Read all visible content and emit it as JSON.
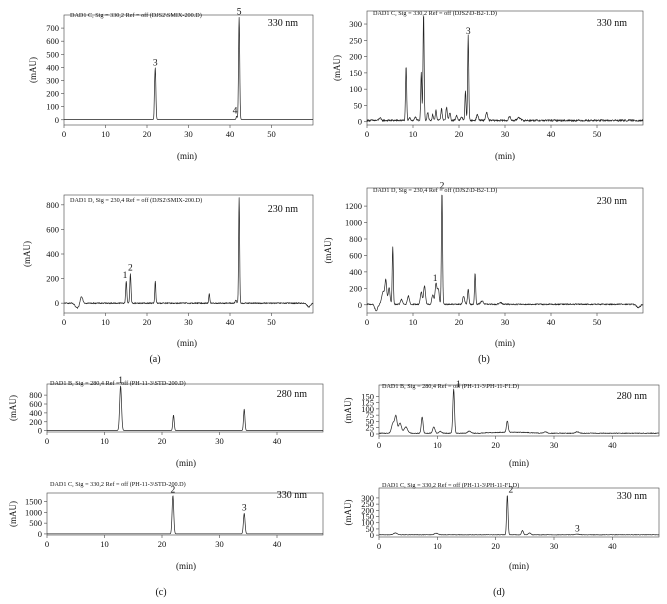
{
  "chart_data": [
    {
      "id": "a1",
      "type": "line",
      "header": "DAD1 C, Sig = 330,2 Ref = off (DJS2\\SMIX-200.D)",
      "wavelength": "330 nm",
      "xlabel": "(min)",
      "ylabel": "(mAU)",
      "xlim": [
        0,
        60
      ],
      "ylim": [
        -40,
        800
      ],
      "xticks": [
        0,
        10,
        20,
        30,
        40,
        50
      ],
      "yticks": [
        0,
        100,
        200,
        300,
        400,
        500,
        600,
        700
      ],
      "baseline": {
        "level": 2,
        "noise": 0,
        "hump": []
      },
      "peaks": [
        [
          22.0,
          390,
          0.14
        ],
        [
          21.8,
          100,
          0.08
        ],
        [
          41.6,
          25,
          0.12
        ],
        [
          42.2,
          780,
          0.14
        ]
      ],
      "peak_labels": [
        {
          "label": "3",
          "x": 22.0,
          "y": 390
        },
        {
          "label": "4",
          "x": 41.2,
          "y": 25
        },
        {
          "label": "5",
          "x": 42.2,
          "y": 780
        }
      ]
    },
    {
      "id": "b1",
      "type": "line",
      "header": "DAD1 C, Sig = 330,2 Ref = off (DJS2\\D-B2-1.D)",
      "wavelength": "330 nm",
      "xlabel": "(min)",
      "ylabel": "(mAU)",
      "xlim": [
        0,
        60
      ],
      "ylim": [
        -10,
        340
      ],
      "xticks": [
        0,
        10,
        20,
        30,
        40,
        50
      ],
      "yticks": [
        0,
        50,
        100,
        150,
        200,
        250,
        300
      ],
      "baseline": {
        "level": 4,
        "noise": 3,
        "hump": []
      },
      "peaks": [
        [
          2.8,
          8,
          0.2
        ],
        [
          8.5,
          165,
          0.12
        ],
        [
          9.3,
          10,
          0.15
        ],
        [
          10.5,
          12,
          0.15
        ],
        [
          11.8,
          150,
          0.12
        ],
        [
          12.3,
          330,
          0.12
        ],
        [
          13.2,
          25,
          0.15
        ],
        [
          14.3,
          18,
          0.15
        ],
        [
          15.0,
          30,
          0.15
        ],
        [
          16.2,
          35,
          0.15
        ],
        [
          17.3,
          40,
          0.15
        ],
        [
          18.0,
          25,
          0.15
        ],
        [
          19.5,
          15,
          0.2
        ],
        [
          20.6,
          10,
          0.2
        ],
        [
          21.4,
          90,
          0.12
        ],
        [
          22.0,
          260,
          0.12
        ],
        [
          24.0,
          18,
          0.2
        ],
        [
          26.0,
          25,
          0.2
        ],
        [
          31.0,
          12,
          0.2
        ],
        [
          33.0,
          10,
          0.3
        ]
      ],
      "peak_labels": [
        {
          "label": "3",
          "x": 22.0,
          "y": 260
        }
      ]
    },
    {
      "id": "a2",
      "type": "line",
      "header": "DAD1 D, Sig = 230,4 Ref = off (DJS2\\SMIX-200.D)",
      "wavelength": "230 nm",
      "xlabel": "(min)",
      "ylabel": "(mAU)",
      "xlim": [
        0,
        60
      ],
      "ylim": [
        -80,
        880
      ],
      "xticks": [
        0,
        10,
        20,
        30,
        40,
        50
      ],
      "yticks": [
        0,
        200,
        400,
        600,
        800
      ],
      "baseline": {
        "level": 0,
        "noise": 5,
        "hump": []
      },
      "peaks": [
        [
          3.2,
          -40,
          0.5
        ],
        [
          4.2,
          60,
          0.3
        ],
        [
          15.0,
          180,
          0.14
        ],
        [
          16.0,
          240,
          0.14
        ],
        [
          22.0,
          180,
          0.12
        ],
        [
          35.0,
          80,
          0.12
        ],
        [
          41.4,
          25,
          0.15
        ],
        [
          42.2,
          860,
          0.12
        ],
        [
          59.0,
          -30,
          0.4
        ]
      ],
      "peak_labels": [
        {
          "label": "1",
          "x": 14.7,
          "y": 180
        },
        {
          "label": "2",
          "x": 16.0,
          "y": 240
        }
      ]
    },
    {
      "id": "b2",
      "type": "line",
      "header": "DAD1 D, Sig = 230,4 Ref = off (DJS2\\D-B2-1.D)",
      "wavelength": "230 nm",
      "xlabel": "(min)",
      "ylabel": "(mAU)",
      "xlim": [
        0,
        60
      ],
      "ylim": [
        -100,
        1420
      ],
      "xticks": [
        0,
        10,
        20,
        30,
        40,
        50
      ],
      "yticks": [
        0,
        200,
        400,
        600,
        800,
        1000,
        1200
      ],
      "baseline": {
        "level": 6,
        "noise": 8,
        "hump": []
      },
      "peaks": [
        [
          2.0,
          -80,
          0.3
        ],
        [
          3.5,
          150,
          0.3
        ],
        [
          4.1,
          280,
          0.2
        ],
        [
          4.8,
          200,
          0.2
        ],
        [
          5.6,
          700,
          0.12
        ],
        [
          7.5,
          60,
          0.2
        ],
        [
          9.0,
          100,
          0.2
        ],
        [
          11.8,
          150,
          0.2
        ],
        [
          12.5,
          220,
          0.2
        ],
        [
          14.3,
          120,
          0.2
        ],
        [
          15.0,
          250,
          0.2
        ],
        [
          15.5,
          180,
          0.2
        ],
        [
          16.3,
          1380,
          0.12
        ],
        [
          21.0,
          100,
          0.2
        ],
        [
          22.0,
          180,
          0.15
        ],
        [
          23.5,
          380,
          0.12
        ],
        [
          25.0,
          40,
          0.3
        ],
        [
          29.0,
          20,
          0.3
        ],
        [
          59.0,
          -40,
          0.4
        ]
      ],
      "peak_labels": [
        {
          "label": "1",
          "x": 14.8,
          "y": 250
        },
        {
          "label": "2",
          "x": 16.3,
          "y": 1380
        }
      ]
    },
    {
      "id": "c1",
      "type": "line",
      "header": "DAD1 B, Sig = 280,4 Ref = off (PH-11-3\\STD-200.D)",
      "wavelength": "280 nm",
      "xlabel": "(min)",
      "ylabel": "(mAU)",
      "xlim": [
        0,
        48
      ],
      "ylim": [
        -30,
        1050
      ],
      "xticks": [
        0,
        10,
        20,
        30,
        40
      ],
      "yticks": [
        0,
        200,
        400,
        600,
        800
      ],
      "baseline": {
        "level": 3,
        "noise": 0,
        "hump": []
      },
      "peaks": [
        [
          12.8,
          1000,
          0.16
        ],
        [
          22.0,
          350,
          0.12
        ],
        [
          34.3,
          480,
          0.12
        ]
      ],
      "peak_labels": [
        {
          "label": "1",
          "x": 12.8,
          "y": 1000
        }
      ]
    },
    {
      "id": "d1",
      "type": "line",
      "header": "DAD1 B, Sig = 280,4 Ref = off (PH-11-3\\PH-11-F1.D)",
      "wavelength": "280 nm",
      "xlabel": "(min)",
      "ylabel": "(mAU)",
      "xlim": [
        0,
        48
      ],
      "ylim": [
        -8,
        195
      ],
      "xticks": [
        0,
        10,
        20,
        30,
        40
      ],
      "yticks": [
        0,
        25,
        50,
        75,
        100,
        125,
        150
      ],
      "baseline": {
        "level": 3,
        "noise": 1.5,
        "hump": [
          [
            17,
            28,
            4
          ]
        ]
      },
      "peaks": [
        [
          2.4,
          40,
          0.25
        ],
        [
          2.9,
          65,
          0.2
        ],
        [
          3.6,
          40,
          0.25
        ],
        [
          4.6,
          25,
          0.3
        ],
        [
          7.4,
          65,
          0.15
        ],
        [
          9.4,
          25,
          0.2
        ],
        [
          10.5,
          8,
          0.2
        ],
        [
          12.8,
          175,
          0.14
        ],
        [
          15.5,
          8,
          0.3
        ],
        [
          22.0,
          45,
          0.15
        ],
        [
          28.5,
          5,
          0.3
        ],
        [
          34.0,
          6,
          0.3
        ]
      ],
      "peak_labels": [
        {
          "label": "1",
          "x": 13.6,
          "y": 175
        }
      ]
    },
    {
      "id": "c2",
      "type": "line",
      "header": "DAD1 C, Sig = 330,2 Ref = off (PH-11-3\\STD-200.D)",
      "wavelength": "330 nm",
      "xlabel": "(min)",
      "ylabel": "(mAU)",
      "xlim": [
        0,
        48
      ],
      "ylim": [
        -50,
        1900
      ],
      "xticks": [
        0,
        10,
        20,
        30,
        40
      ],
      "yticks": [
        0,
        500,
        1000,
        1500
      ],
      "baseline": {
        "level": 5,
        "noise": 0,
        "hump": []
      },
      "peaks": [
        [
          21.9,
          1780,
          0.14
        ],
        [
          34.3,
          950,
          0.14
        ]
      ],
      "peak_labels": [
        {
          "label": "2",
          "x": 21.9,
          "y": 1780
        },
        {
          "label": "3",
          "x": 34.3,
          "y": 950
        }
      ]
    },
    {
      "id": "d2",
      "type": "line",
      "header": "DAD1 C, Sig = 330,2 Ref = off (PH-11-3\\PH-11-F1.D)",
      "wavelength": "330 nm",
      "xlabel": "(min)",
      "ylabel": "(mAU)",
      "xlim": [
        0,
        48
      ],
      "ylim": [
        -15,
        380
      ],
      "xticks": [
        0,
        10,
        20,
        30,
        40
      ],
      "yticks": [
        0,
        50,
        100,
        150,
        200,
        250,
        300
      ],
      "baseline": {
        "level": 3,
        "noise": 2,
        "hump": []
      },
      "peaks": [
        [
          2.8,
          15,
          0.3
        ],
        [
          9.8,
          12,
          0.3
        ],
        [
          22.0,
          320,
          0.12
        ],
        [
          24.6,
          35,
          0.15
        ],
        [
          25.8,
          15,
          0.2
        ],
        [
          34.0,
          6,
          0.3
        ]
      ],
      "peak_labels": [
        {
          "label": "2",
          "x": 22.6,
          "y": 320
        },
        {
          "label": "3",
          "x": 34.0,
          "y": 6
        }
      ]
    }
  ],
  "panel_labels": {
    "a": "(a)",
    "b": "(b)",
    "c": "(c)",
    "d": "(d)"
  }
}
